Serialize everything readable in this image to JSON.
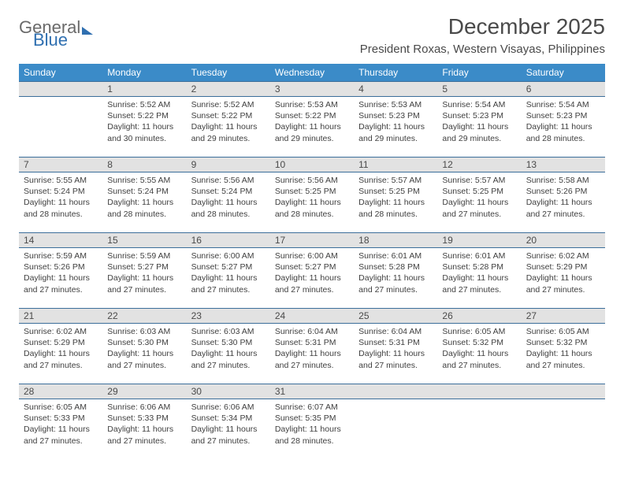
{
  "logo": {
    "text1": "General",
    "text2": "Blue"
  },
  "title": "December 2025",
  "location": "President Roxas, Western Visayas, Philippines",
  "colors": {
    "header_bg": "#3b8bc8",
    "header_text": "#ffffff",
    "daynum_bg": "#e2e2e2",
    "daynum_border": "#3b6e9a",
    "text": "#3f3f3f",
    "title_text": "#4a4a4a",
    "logo_blue": "#2f6fb0"
  },
  "day_labels": [
    "Sunday",
    "Monday",
    "Tuesday",
    "Wednesday",
    "Thursday",
    "Friday",
    "Saturday"
  ],
  "weeks": [
    {
      "nums": [
        "",
        "1",
        "2",
        "3",
        "4",
        "5",
        "6"
      ],
      "cells": [
        null,
        {
          "sunrise": "5:52 AM",
          "sunset": "5:22 PM",
          "daylight": "11 hours and 30 minutes."
        },
        {
          "sunrise": "5:52 AM",
          "sunset": "5:22 PM",
          "daylight": "11 hours and 29 minutes."
        },
        {
          "sunrise": "5:53 AM",
          "sunset": "5:22 PM",
          "daylight": "11 hours and 29 minutes."
        },
        {
          "sunrise": "5:53 AM",
          "sunset": "5:23 PM",
          "daylight": "11 hours and 29 minutes."
        },
        {
          "sunrise": "5:54 AM",
          "sunset": "5:23 PM",
          "daylight": "11 hours and 29 minutes."
        },
        {
          "sunrise": "5:54 AM",
          "sunset": "5:23 PM",
          "daylight": "11 hours and 28 minutes."
        }
      ]
    },
    {
      "nums": [
        "7",
        "8",
        "9",
        "10",
        "11",
        "12",
        "13"
      ],
      "cells": [
        {
          "sunrise": "5:55 AM",
          "sunset": "5:24 PM",
          "daylight": "11 hours and 28 minutes."
        },
        {
          "sunrise": "5:55 AM",
          "sunset": "5:24 PM",
          "daylight": "11 hours and 28 minutes."
        },
        {
          "sunrise": "5:56 AM",
          "sunset": "5:24 PM",
          "daylight": "11 hours and 28 minutes."
        },
        {
          "sunrise": "5:56 AM",
          "sunset": "5:25 PM",
          "daylight": "11 hours and 28 minutes."
        },
        {
          "sunrise": "5:57 AM",
          "sunset": "5:25 PM",
          "daylight": "11 hours and 28 minutes."
        },
        {
          "sunrise": "5:57 AM",
          "sunset": "5:25 PM",
          "daylight": "11 hours and 27 minutes."
        },
        {
          "sunrise": "5:58 AM",
          "sunset": "5:26 PM",
          "daylight": "11 hours and 27 minutes."
        }
      ]
    },
    {
      "nums": [
        "14",
        "15",
        "16",
        "17",
        "18",
        "19",
        "20"
      ],
      "cells": [
        {
          "sunrise": "5:59 AM",
          "sunset": "5:26 PM",
          "daylight": "11 hours and 27 minutes."
        },
        {
          "sunrise": "5:59 AM",
          "sunset": "5:27 PM",
          "daylight": "11 hours and 27 minutes."
        },
        {
          "sunrise": "6:00 AM",
          "sunset": "5:27 PM",
          "daylight": "11 hours and 27 minutes."
        },
        {
          "sunrise": "6:00 AM",
          "sunset": "5:27 PM",
          "daylight": "11 hours and 27 minutes."
        },
        {
          "sunrise": "6:01 AM",
          "sunset": "5:28 PM",
          "daylight": "11 hours and 27 minutes."
        },
        {
          "sunrise": "6:01 AM",
          "sunset": "5:28 PM",
          "daylight": "11 hours and 27 minutes."
        },
        {
          "sunrise": "6:02 AM",
          "sunset": "5:29 PM",
          "daylight": "11 hours and 27 minutes."
        }
      ]
    },
    {
      "nums": [
        "21",
        "22",
        "23",
        "24",
        "25",
        "26",
        "27"
      ],
      "cells": [
        {
          "sunrise": "6:02 AM",
          "sunset": "5:29 PM",
          "daylight": "11 hours and 27 minutes."
        },
        {
          "sunrise": "6:03 AM",
          "sunset": "5:30 PM",
          "daylight": "11 hours and 27 minutes."
        },
        {
          "sunrise": "6:03 AM",
          "sunset": "5:30 PM",
          "daylight": "11 hours and 27 minutes."
        },
        {
          "sunrise": "6:04 AM",
          "sunset": "5:31 PM",
          "daylight": "11 hours and 27 minutes."
        },
        {
          "sunrise": "6:04 AM",
          "sunset": "5:31 PM",
          "daylight": "11 hours and 27 minutes."
        },
        {
          "sunrise": "6:05 AM",
          "sunset": "5:32 PM",
          "daylight": "11 hours and 27 minutes."
        },
        {
          "sunrise": "6:05 AM",
          "sunset": "5:32 PM",
          "daylight": "11 hours and 27 minutes."
        }
      ]
    },
    {
      "nums": [
        "28",
        "29",
        "30",
        "31",
        "",
        "",
        ""
      ],
      "cells": [
        {
          "sunrise": "6:05 AM",
          "sunset": "5:33 PM",
          "daylight": "11 hours and 27 minutes."
        },
        {
          "sunrise": "6:06 AM",
          "sunset": "5:33 PM",
          "daylight": "11 hours and 27 minutes."
        },
        {
          "sunrise": "6:06 AM",
          "sunset": "5:34 PM",
          "daylight": "11 hours and 27 minutes."
        },
        {
          "sunrise": "6:07 AM",
          "sunset": "5:35 PM",
          "daylight": "11 hours and 28 minutes."
        },
        null,
        null,
        null
      ]
    }
  ],
  "labels": {
    "sunrise_prefix": "Sunrise: ",
    "sunset_prefix": "Sunset: ",
    "daylight_prefix": "Daylight: "
  }
}
